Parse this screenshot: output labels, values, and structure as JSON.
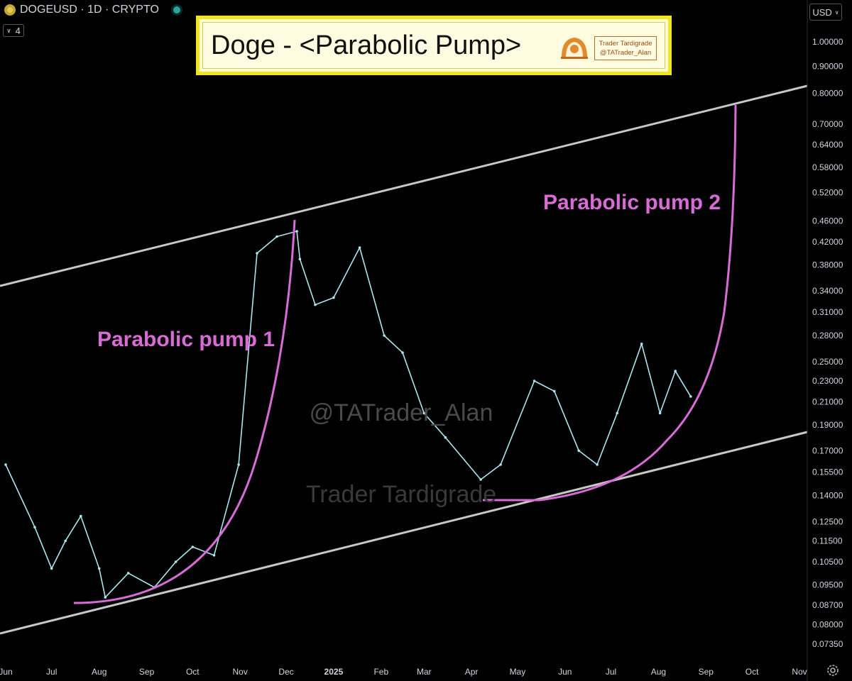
{
  "header": {
    "symbol": "DOGEUSD · 1D · CRYPTO",
    "interval_badge": "4",
    "currency": "USD"
  },
  "banner": {
    "title": "Doge - <Parabolic Pump>",
    "badge_line1": "Trader Tardigrade",
    "badge_line2": "@TATrader_Alan"
  },
  "watermarks": [
    "@TATrader_Alan",
    "Trader Tardigrade"
  ],
  "colors": {
    "background": "#000000",
    "price": "#a9e6f0",
    "annotation": "#d96bd6",
    "channel": "#c8c8c8",
    "banner_border": "#f2e51b"
  },
  "chart_data": {
    "type": "line",
    "title": "Doge - <Parabolic Pump>",
    "scale": "log",
    "ylim": [
      0.07,
      1.05
    ],
    "y_ticks": [
      1.0,
      0.9,
      0.8,
      0.7,
      0.64,
      0.58,
      0.52,
      0.46,
      0.42,
      0.38,
      0.34,
      0.31,
      0.28,
      0.25,
      0.23,
      0.21,
      0.19,
      0.17,
      0.155,
      0.14,
      0.125,
      0.115,
      0.105,
      0.095,
      0.087,
      0.08,
      0.0735
    ],
    "y_tick_labels": [
      "1.00000",
      "0.90000",
      "0.80000",
      "0.70000",
      "0.64000",
      "0.58000",
      "0.52000",
      "0.46000",
      "0.42000",
      "0.38000",
      "0.34000",
      "0.31000",
      "0.28000",
      "0.25000",
      "0.23000",
      "0.21000",
      "0.19000",
      "0.17000",
      "0.15500",
      "0.14000",
      "0.12500",
      "0.11500",
      "0.10500",
      "0.09500",
      "0.08700",
      "0.08000",
      "0.07350"
    ],
    "x_tick_labels": [
      "Jun",
      "Jul",
      "Aug",
      "Sep",
      "Oct",
      "Nov",
      "Dec",
      "2025",
      "Feb",
      "Mar",
      "Apr",
      "May",
      "Jun",
      "Jul",
      "Aug",
      "Sep",
      "Oct",
      "Nov"
    ],
    "x": [
      "2024-06-01",
      "2024-06-20",
      "2024-07-01",
      "2024-07-10",
      "2024-07-20",
      "2024-08-01",
      "2024-08-05",
      "2024-08-20",
      "2024-09-06",
      "2024-09-20",
      "2024-10-01",
      "2024-10-15",
      "2024-10-31",
      "2024-11-12",
      "2024-11-25",
      "2024-12-08",
      "2024-12-10",
      "2024-12-20",
      "2025-01-01",
      "2025-01-18",
      "2025-02-03",
      "2025-02-15",
      "2025-03-01",
      "2025-03-15",
      "2025-04-07",
      "2025-04-20",
      "2025-05-12",
      "2025-05-25",
      "2025-06-10",
      "2025-06-22",
      "2025-07-05",
      "2025-07-21",
      "2025-08-02",
      "2025-08-12",
      "2025-08-22"
    ],
    "series": [
      {
        "values": [
          0.16,
          0.122,
          0.102,
          0.115,
          0.128,
          0.102,
          0.09,
          0.1,
          0.094,
          0.105,
          0.112,
          0.108,
          0.16,
          0.4,
          0.43,
          0.44,
          0.39,
          0.32,
          0.33,
          0.41,
          0.28,
          0.26,
          0.2,
          0.18,
          0.15,
          0.16,
          0.23,
          0.22,
          0.17,
          0.16,
          0.2,
          0.27,
          0.2,
          0.24,
          0.215
        ]
      }
    ],
    "annotations": [
      "Parabolic pump 1",
      "Parabolic pump 2"
    ]
  }
}
